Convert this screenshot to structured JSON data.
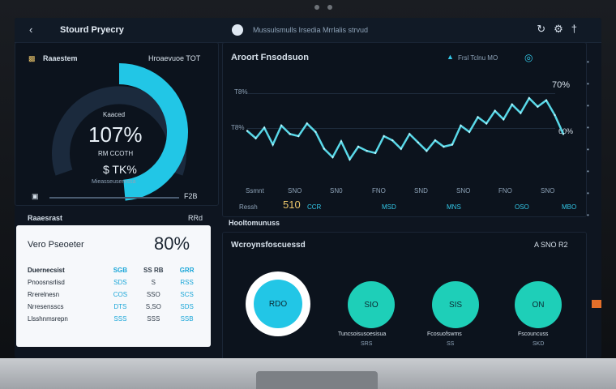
{
  "topbar": {
    "back_icon": "chevron-left-icon",
    "app_title": "Stourd Pryecry",
    "crumb": "Mussulsmulls Irsedia Mrrlalis strvud",
    "icons": [
      "refresh-icon",
      "settings-icon",
      "close-icon"
    ]
  },
  "gauge": {
    "header_left": "Raaestem",
    "header_right": "Hroaevuoe TOT",
    "center_small": "Kaaced",
    "center_value": "107%",
    "center_sub": "RM CCOTH",
    "lower_value": "$ TK%",
    "lower_sub": "Mieasseuseressa",
    "footer_right": "F2B",
    "progress": 0.67,
    "accent": "#22c6e6"
  },
  "chart": {
    "title": "Aroort Fnsodsuon",
    "controls": "Frsl Tclnu MO",
    "right_top": "70%",
    "right_mid": "60%",
    "y_labels": [
      "T8%",
      "T8%"
    ],
    "x_labels": [
      "Ssmnt",
      "SNO",
      "SN0",
      "FNO",
      "SND",
      "SNO",
      "FNO",
      "SNO"
    ],
    "bottom_value": "510",
    "bottom_labels": [
      "Ressh",
      "CCR",
      "MSD",
      "MNS",
      "OSO",
      "MBO"
    ],
    "line_color": "#59d8e8"
  },
  "chart_data": {
    "type": "line",
    "series": [
      {
        "values": [
          55,
          48,
          58,
          42,
          60,
          52,
          50,
          62,
          54,
          38,
          30,
          45,
          28,
          40,
          36,
          34,
          50,
          46,
          38,
          52,
          44,
          36,
          46,
          40,
          42,
          60,
          54,
          68,
          62,
          74,
          66,
          80,
          72,
          86,
          78,
          84,
          70,
          52
        ]
      }
    ]
  },
  "white_card": {
    "title": "Vero Pseoeter",
    "value": "80%",
    "rows": [
      [
        "Duernecsist",
        "SGB",
        "SS RB",
        "GRR"
      ],
      [
        "Pnoosnsrlisd",
        "SDS",
        "S",
        "RSS"
      ],
      [
        "Rrerelnesn",
        "COS",
        "SSO",
        "SCS"
      ],
      [
        "Nrresensscs",
        "DTS",
        "S,SO",
        "SDS"
      ],
      [
        "Llsshnmsrepn",
        "SSS",
        "SSS",
        "SSB"
      ]
    ],
    "section_label": "Raaesrast",
    "section_right": "RRd"
  },
  "circles_panel": {
    "title": "Wcroynsfoscuessd",
    "header_right": "A SNO R2",
    "tab": "Hooltomunuss",
    "circles": [
      {
        "label": "RDO"
      },
      {
        "label": "SIO"
      },
      {
        "label": "SIS"
      },
      {
        "label": "ON"
      }
    ],
    "captions": [
      "Tuncsoisusoesisua",
      "Fcosuofswms",
      "Fscouncuss"
    ],
    "captions_sub": [
      "SRS",
      "SS",
      "SKD"
    ]
  }
}
